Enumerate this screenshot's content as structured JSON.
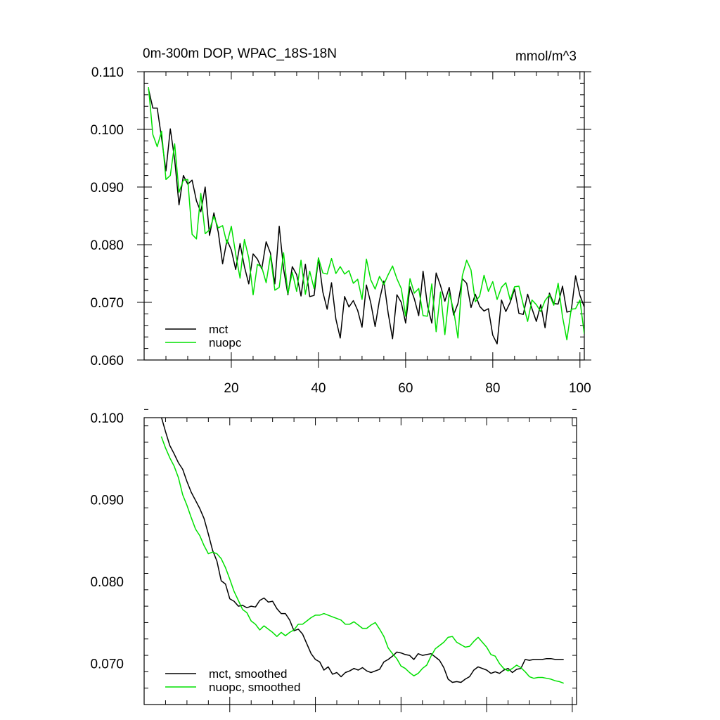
{
  "chart_data": [
    {
      "type": "line",
      "title": "0m-300m DOP, WPAC_18S-18N",
      "units": "mmol/m^3",
      "xlabel": "",
      "ylabel": "",
      "xlim": [
        0,
        101
      ],
      "ylim": [
        0.06,
        0.11
      ],
      "xticks": [
        20,
        40,
        60,
        80,
        100
      ],
      "xtick_labels": [
        "20",
        "40",
        "60",
        "80",
        "100"
      ],
      "yticks": [
        0.06,
        0.07,
        0.08,
        0.09,
        0.1,
        0.11
      ],
      "ytick_labels": [
        "0.060",
        "0.070",
        "0.080",
        "0.090",
        "0.100",
        "0.110"
      ],
      "grid": false,
      "legend_position": "bottom-left",
      "x": [
        1,
        2,
        3,
        4,
        5,
        6,
        7,
        8,
        9,
        10,
        11,
        12,
        13,
        14,
        15,
        16,
        17,
        18,
        19,
        20,
        21,
        22,
        23,
        24,
        25,
        26,
        27,
        28,
        29,
        30,
        31,
        32,
        33,
        34,
        35,
        36,
        37,
        38,
        39,
        40,
        41,
        42,
        43,
        44,
        45,
        46,
        47,
        48,
        49,
        50,
        51,
        52,
        53,
        54,
        55,
        56,
        57,
        58,
        59,
        60,
        61,
        62,
        63,
        64,
        65,
        66,
        67,
        68,
        69,
        70,
        71,
        72,
        73,
        74,
        75,
        76,
        77,
        78,
        79,
        80,
        81,
        82,
        83,
        84,
        85,
        86,
        87,
        88,
        89,
        90,
        91,
        92,
        93,
        94,
        95,
        96,
        97,
        98,
        99,
        100,
        101
      ],
      "series": [
        {
          "name": "mct",
          "color": "#000000",
          "values": [
            0.107,
            0.1037,
            0.1037,
            0.0985,
            0.0928,
            0.1001,
            0.0948,
            0.0869,
            0.092,
            0.0905,
            0.0912,
            0.0876,
            0.0857,
            0.09,
            0.0816,
            0.0855,
            0.0822,
            0.0767,
            0.0808,
            0.0791,
            0.0757,
            0.0802,
            0.0762,
            0.0732,
            0.0784,
            0.0775,
            0.0758,
            0.0805,
            0.0785,
            0.0732,
            0.0832,
            0.0758,
            0.0713,
            0.0762,
            0.0748,
            0.0711,
            0.0766,
            0.071,
            0.0712,
            0.0777,
            0.0718,
            0.0688,
            0.0734,
            0.0671,
            0.0638,
            0.071,
            0.0692,
            0.0703,
            0.0686,
            0.0657,
            0.073,
            0.0699,
            0.0658,
            0.0704,
            0.0737,
            0.0681,
            0.0637,
            0.0713,
            0.07,
            0.0664,
            0.0727,
            0.0706,
            0.0677,
            0.0754,
            0.0695,
            0.0664,
            0.0751,
            0.0729,
            0.0702,
            0.0726,
            0.0678,
            0.0698,
            0.0741,
            0.0733,
            0.0691,
            0.0714,
            0.0693,
            0.0685,
            0.0689,
            0.0643,
            0.0628,
            0.0704,
            0.0684,
            0.07,
            0.0723,
            0.0681,
            0.0679,
            0.0714,
            0.0689,
            0.0667,
            0.0696,
            0.0656,
            0.0716,
            0.0698,
            0.0697,
            0.0728,
            0.0683,
            0.0685,
            0.0746,
            0.0712,
            0.0692
          ]
        },
        {
          "name": "nuopc",
          "color": "#00e000",
          "values": [
            0.1073,
            0.0991,
            0.097,
            0.0997,
            0.0913,
            0.092,
            0.0975,
            0.0891,
            0.0912,
            0.0913,
            0.0818,
            0.081,
            0.0889,
            0.0819,
            0.0826,
            0.0849,
            0.0829,
            0.0833,
            0.0802,
            0.0832,
            0.0784,
            0.0742,
            0.0809,
            0.0777,
            0.0713,
            0.0766,
            0.0761,
            0.0734,
            0.0781,
            0.0721,
            0.0726,
            0.0786,
            0.0715,
            0.0752,
            0.0719,
            0.0773,
            0.0714,
            0.0754,
            0.0724,
            0.0777,
            0.0751,
            0.0749,
            0.0776,
            0.075,
            0.0762,
            0.0749,
            0.0755,
            0.0733,
            0.074,
            0.0705,
            0.0775,
            0.0739,
            0.0723,
            0.0745,
            0.0731,
            0.0748,
            0.0763,
            0.0741,
            0.0724,
            0.0676,
            0.0741,
            0.0716,
            0.0724,
            0.0677,
            0.0676,
            0.0732,
            0.0649,
            0.0718,
            0.0644,
            0.0716,
            0.0687,
            0.0638,
            0.0746,
            0.0773,
            0.0756,
            0.0701,
            0.0711,
            0.0747,
            0.0719,
            0.0736,
            0.0705,
            0.0726,
            0.0734,
            0.0704,
            0.0727,
            0.0728,
            0.0696,
            0.0667,
            0.0704,
            0.0696,
            0.0684,
            0.0703,
            0.0713,
            0.0695,
            0.0733,
            0.0675,
            0.0635,
            0.0688,
            0.0689,
            0.0704,
            0.0645
          ]
        }
      ],
      "legend": {
        "entries": [
          {
            "label": "mct",
            "color": "#000000"
          },
          {
            "label": "nuopc",
            "color": "#00e000"
          }
        ]
      }
    },
    {
      "type": "line",
      "title": "",
      "xlabel": "",
      "ylabel": "",
      "xlim": [
        0,
        101
      ],
      "ylim": [
        0.065,
        0.1
      ],
      "xticks": [
        20,
        40,
        60,
        80,
        100
      ],
      "xtick_labels": [],
      "yticks": [
        0.07,
        0.08,
        0.09,
        0.1
      ],
      "ytick_labels": [
        "0.070",
        "0.080",
        "0.090",
        "0.100"
      ],
      "grid": false,
      "legend_position": "bottom-left",
      "x": [
        4,
        5,
        6,
        7,
        8,
        9,
        10,
        11,
        12,
        13,
        14,
        15,
        16,
        17,
        18,
        19,
        20,
        21,
        22,
        23,
        24,
        25,
        26,
        27,
        28,
        29,
        30,
        31,
        32,
        33,
        34,
        35,
        36,
        37,
        38,
        39,
        40,
        41,
        42,
        43,
        44,
        45,
        46,
        47,
        48,
        49,
        50,
        51,
        52,
        53,
        54,
        55,
        56,
        57,
        58,
        59,
        60,
        61,
        62,
        63,
        64,
        65,
        66,
        67,
        68,
        69,
        70,
        71,
        72,
        73,
        74,
        75,
        76,
        77,
        78,
        79,
        80,
        81,
        82,
        83,
        84,
        85,
        86,
        87,
        88,
        89,
        90,
        91,
        92,
        93,
        94,
        95,
        96,
        97,
        98
      ],
      "series": [
        {
          "name": "mct, smoothed",
          "color": "#000000",
          "values": [
            0.1001,
            0.0983,
            0.0966,
            0.0956,
            0.0945,
            0.0937,
            0.0922,
            0.0909,
            0.0899,
            0.0889,
            0.0877,
            0.0858,
            0.0838,
            0.0825,
            0.0801,
            0.0797,
            0.0779,
            0.0776,
            0.077,
            0.0771,
            0.0768,
            0.077,
            0.0769,
            0.0777,
            0.078,
            0.0775,
            0.0776,
            0.0767,
            0.0761,
            0.0761,
            0.0753,
            0.074,
            0.0742,
            0.0736,
            0.0724,
            0.0712,
            0.0705,
            0.0702,
            0.0692,
            0.0696,
            0.0687,
            0.0689,
            0.0684,
            0.0689,
            0.0691,
            0.0694,
            0.0692,
            0.0695,
            0.0691,
            0.0689,
            0.0691,
            0.0693,
            0.0702,
            0.0705,
            0.0709,
            0.0714,
            0.0713,
            0.0711,
            0.071,
            0.0705,
            0.0712,
            0.071,
            0.0711,
            0.0712,
            0.0708,
            0.0704,
            0.0695,
            0.0681,
            0.0677,
            0.0678,
            0.0677,
            0.0681,
            0.0684,
            0.0692,
            0.0696,
            0.0694,
            0.0692,
            0.0688,
            0.069,
            0.0688,
            0.0692,
            0.0694,
            0.0689,
            0.0693,
            0.0694,
            0.0705,
            0.0704,
            0.0705,
            0.0705,
            0.0705,
            0.0706,
            0.0706,
            0.0705,
            0.0705,
            0.0705
          ]
        },
        {
          "name": "nuopc, smoothed",
          "color": "#00e000",
          "values": [
            0.0977,
            0.0963,
            0.0951,
            0.0941,
            0.0927,
            0.0906,
            0.0893,
            0.0878,
            0.0864,
            0.0856,
            0.0844,
            0.0834,
            0.0836,
            0.0834,
            0.0828,
            0.0817,
            0.0803,
            0.0788,
            0.0777,
            0.0766,
            0.0762,
            0.0752,
            0.0748,
            0.0741,
            0.0746,
            0.0742,
            0.0738,
            0.0733,
            0.0738,
            0.0734,
            0.0738,
            0.0741,
            0.0748,
            0.0748,
            0.0752,
            0.0756,
            0.0759,
            0.0759,
            0.0761,
            0.0759,
            0.0757,
            0.0755,
            0.0753,
            0.0748,
            0.0748,
            0.0751,
            0.0747,
            0.0743,
            0.0743,
            0.0747,
            0.075,
            0.0742,
            0.0733,
            0.0719,
            0.0712,
            0.0706,
            0.0697,
            0.0694,
            0.0689,
            0.0685,
            0.0688,
            0.0694,
            0.0698,
            0.0709,
            0.0718,
            0.0722,
            0.0726,
            0.0732,
            0.0733,
            0.0726,
            0.0723,
            0.072,
            0.0721,
            0.0727,
            0.0732,
            0.0726,
            0.072,
            0.0711,
            0.0709,
            0.07,
            0.0694,
            0.0691,
            0.0694,
            0.0698,
            0.0695,
            0.069,
            0.0684,
            0.0682,
            0.0683,
            0.0683,
            0.0682,
            0.0681,
            0.0679,
            0.0678,
            0.0676
          ]
        }
      ],
      "legend": {
        "entries": [
          {
            "label": "mct, smoothed",
            "color": "#000000"
          },
          {
            "label": "nuopc, smoothed",
            "color": "#00e000"
          }
        ]
      }
    }
  ]
}
